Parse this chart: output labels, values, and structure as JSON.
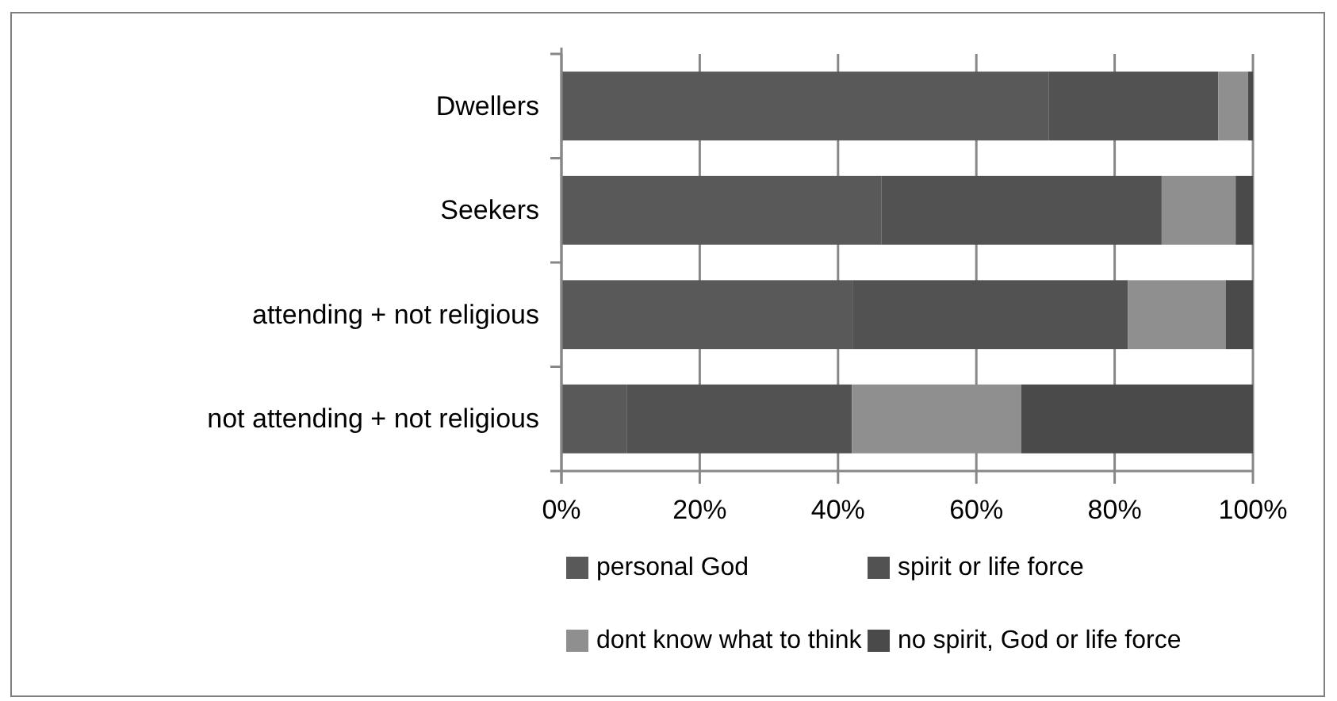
{
  "chart_data": {
    "type": "bar",
    "orientation": "horizontal",
    "stacked": true,
    "categories": [
      "Dwellers",
      "Seekers",
      "attending + not religious",
      "not attending + not religious"
    ],
    "series": [
      {
        "name": "personal God",
        "color": "#595959",
        "values": [
          70.5,
          46.3,
          42.1,
          9.5
        ]
      },
      {
        "name": "spirit or life force",
        "color": "#525252",
        "values": [
          24.5,
          40.5,
          39.8,
          32.5
        ]
      },
      {
        "name": "dont know what to think",
        "color": "#8f8f8f",
        "values": [
          4.3,
          10.7,
          14.2,
          24.5
        ]
      },
      {
        "name": "no spirit, God or life force",
        "color": "#4a4a4a",
        "values": [
          0.7,
          2.5,
          3.9,
          33.5
        ]
      }
    ],
    "xlim": [
      0,
      100
    ],
    "xticks": [
      {
        "value": 0,
        "label": "0%"
      },
      {
        "value": 20,
        "label": "20%"
      },
      {
        "value": 40,
        "label": "40%"
      },
      {
        "value": 60,
        "label": "60%"
      },
      {
        "value": 80,
        "label": "80%"
      },
      {
        "value": 100,
        "label": "100%"
      }
    ],
    "grid": "x",
    "legend": "bottom"
  }
}
